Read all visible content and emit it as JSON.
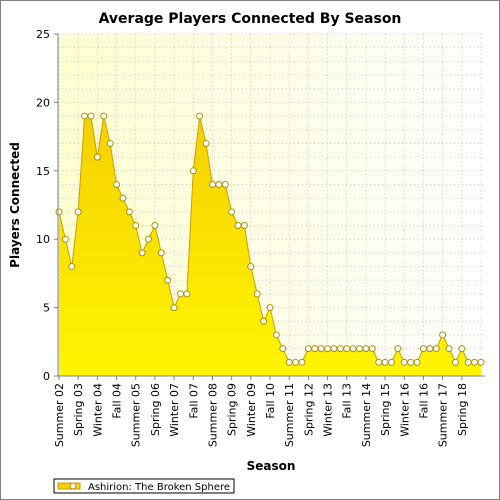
{
  "chart_data": {
    "type": "area",
    "title": "Average Players Connected By Season",
    "xlabel": "Season",
    "ylabel": "Players Connected",
    "ylim": [
      0,
      25
    ],
    "yticks": [
      0,
      5,
      10,
      15,
      20,
      25
    ],
    "grid": true,
    "legend_position": "bottom-left",
    "colors": {
      "fill_top": "#f5d000",
      "fill_bottom": "#fff500",
      "line": "#c8a000",
      "marker_fill": "#ffffff",
      "marker_stroke": "#b09000",
      "plot_bg_left": "#ffffd0",
      "plot_bg_right": "#ffffff",
      "grid": "#c8c8c8"
    },
    "x_tick_labels": [
      "Summer 02",
      "Spring 03",
      "Winter 04",
      "Fall 04",
      "Summer 05",
      "Spring 06",
      "Winter 07",
      "Fall 07",
      "Summer 08",
      "Spring 09",
      "Winter 09",
      "Fall 10",
      "Summer 11",
      "Spring 12",
      "Winter 13",
      "Fall 13",
      "Summer 14",
      "Spring 15",
      "Winter 16",
      "Fall 16",
      "Summer 17",
      "Spring 18"
    ],
    "series": [
      {
        "name": "Ashirion: The Broken Sphere",
        "values": [
          12,
          10,
          8,
          12,
          19,
          19,
          16,
          19,
          17,
          14,
          13,
          12,
          11,
          9,
          10,
          11,
          9,
          7,
          5,
          6,
          6,
          15,
          19,
          17,
          14,
          14,
          14,
          12,
          11,
          11,
          8,
          6,
          4,
          5,
          3,
          2,
          1,
          1,
          1,
          2,
          2,
          2,
          2,
          2,
          2,
          2,
          2,
          2,
          2,
          2,
          1,
          1,
          1,
          2,
          1,
          1,
          1,
          2,
          2,
          2,
          3,
          2,
          1,
          2,
          1,
          1,
          1
        ]
      }
    ]
  }
}
